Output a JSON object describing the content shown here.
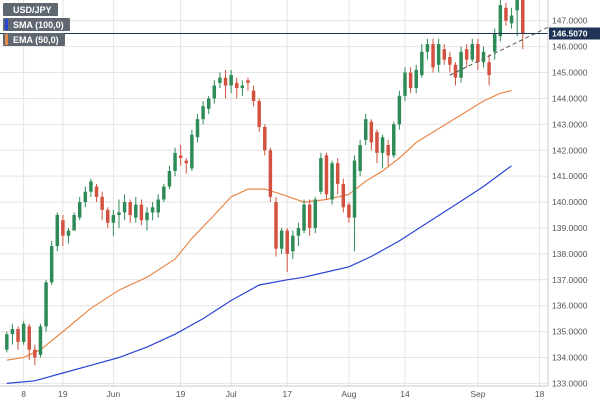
{
  "legend": {
    "symbol": "USD/JPY",
    "sma_label": "SMA (100,0)",
    "ema_label": "EMA (50,0)"
  },
  "colors": {
    "bull": "#2e8b57",
    "bear": "#d2523f",
    "sma": "#2a44d4",
    "ema": "#e8894a",
    "price_line": "#1f3356",
    "trendline": "#555555",
    "grid": "#e4e4e4",
    "last_box": "#1f3356"
  },
  "chart_data": {
    "type": "candlestick",
    "symbol": "USD/JPY",
    "ylim": [
      132.9,
      147.8
    ],
    "y_ticks": [
      "133.0000",
      "134.0000",
      "135.0000",
      "136.0000",
      "137.0000",
      "138.0000",
      "139.0000",
      "140.0000",
      "141.0000",
      "142.0000",
      "143.0000",
      "144.0000",
      "145.0000",
      "146.0000",
      "147.0000"
    ],
    "x_ticks": [
      {
        "label": "8",
        "at": 3
      },
      {
        "label": "19",
        "at": 10
      },
      {
        "label": "Jun",
        "at": 19
      },
      {
        "label": "19",
        "at": 31
      },
      {
        "label": "Jul",
        "at": 40
      },
      {
        "label": "17",
        "at": 50
      },
      {
        "label": "Aug",
        "at": 61
      },
      {
        "label": "14",
        "at": 71
      },
      {
        "label": "Sep",
        "at": 84
      },
      {
        "label": "18",
        "at": 95
      }
    ],
    "n_slots": 97,
    "last_price": "146.5070",
    "candles": [
      [
        134.3,
        134.9,
        134.2,
        135.0
      ],
      [
        134.9,
        135.1,
        134.5,
        135.3
      ],
      [
        135.1,
        134.6,
        134.3,
        135.2
      ],
      [
        134.6,
        135.3,
        134.5,
        135.4
      ],
      [
        135.2,
        134.3,
        133.9,
        135.3
      ],
      [
        134.3,
        134.0,
        133.7,
        134.5
      ],
      [
        134.1,
        135.2,
        134.0,
        135.3
      ],
      [
        135.2,
        136.9,
        135.0,
        137.0
      ],
      [
        136.9,
        138.3,
        136.8,
        138.5
      ],
      [
        138.3,
        139.5,
        138.1,
        139.6
      ],
      [
        139.3,
        138.7,
        138.3,
        139.5
      ],
      [
        138.7,
        138.9,
        138.4,
        139.0
      ],
      [
        138.9,
        139.5,
        138.9,
        139.6
      ],
      [
        139.4,
        140.0,
        139.3,
        140.2
      ],
      [
        140.0,
        140.4,
        139.8,
        140.6
      ],
      [
        140.4,
        140.8,
        140.2,
        140.9
      ],
      [
        140.6,
        140.2,
        140.0,
        140.7
      ],
      [
        140.2,
        139.7,
        139.3,
        140.4
      ],
      [
        139.7,
        139.2,
        139.0,
        139.8
      ],
      [
        139.2,
        139.5,
        138.7,
        139.7
      ],
      [
        139.5,
        139.6,
        139.0,
        140.1
      ],
      [
        139.6,
        140.0,
        139.3,
        140.3
      ],
      [
        140.0,
        139.5,
        139.2,
        140.1
      ],
      [
        139.4,
        139.9,
        139.2,
        140.2
      ],
      [
        139.9,
        139.3,
        139.1,
        140.1
      ],
      [
        139.3,
        139.6,
        138.9,
        139.8
      ],
      [
        139.6,
        139.8,
        139.3,
        140.0
      ],
      [
        139.6,
        140.1,
        139.4,
        140.3
      ],
      [
        140.1,
        140.6,
        140.0,
        140.7
      ],
      [
        140.6,
        141.2,
        140.5,
        141.4
      ],
      [
        141.2,
        141.9,
        141.0,
        142.1
      ],
      [
        141.8,
        141.7,
        141.4,
        142.2
      ],
      [
        141.6,
        141.5,
        141.1,
        141.7
      ],
      [
        141.3,
        142.6,
        141.2,
        142.8
      ],
      [
        142.5,
        143.2,
        142.3,
        143.4
      ],
      [
        143.2,
        143.7,
        143.0,
        143.9
      ],
      [
        143.6,
        144.0,
        143.4,
        144.1
      ],
      [
        144.0,
        144.5,
        143.8,
        144.7
      ],
      [
        144.6,
        144.8,
        144.4,
        145.0
      ],
      [
        144.8,
        144.5,
        144.0,
        145.1
      ],
      [
        144.5,
        144.9,
        144.2,
        145.1
      ],
      [
        144.6,
        144.4,
        144.0,
        144.8
      ],
      [
        144.4,
        144.5,
        144.1,
        144.7
      ],
      [
        144.7,
        144.6,
        144.3,
        144.8
      ],
      [
        144.3,
        143.9,
        143.7,
        144.5
      ],
      [
        143.9,
        142.9,
        142.7,
        144.0
      ],
      [
        142.9,
        142.0,
        141.8,
        143.0
      ],
      [
        142.0,
        140.2,
        140.0,
        142.1
      ],
      [
        140.0,
        138.2,
        137.9,
        140.2
      ],
      [
        138.2,
        138.9,
        138.0,
        139.0
      ],
      [
        138.9,
        138.0,
        137.3,
        139.0
      ],
      [
        138.1,
        138.7,
        137.8,
        138.9
      ],
      [
        138.7,
        139.0,
        138.3,
        139.2
      ],
      [
        138.9,
        139.9,
        138.8,
        140.1
      ],
      [
        139.9,
        139.0,
        138.7,
        140.1
      ],
      [
        139.0,
        140.1,
        138.8,
        140.2
      ],
      [
        140.4,
        141.7,
        140.3,
        141.9
      ],
      [
        141.8,
        140.3,
        140.1,
        141.9
      ],
      [
        140.1,
        141.5,
        139.9,
        141.6
      ],
      [
        141.5,
        140.7,
        140.3,
        141.7
      ],
      [
        140.7,
        139.8,
        139.6,
        140.9
      ],
      [
        139.9,
        139.4,
        139.2,
        140.0
      ],
      [
        139.4,
        141.6,
        138.1,
        141.8
      ],
      [
        141.2,
        142.2,
        141.0,
        142.4
      ],
      [
        142.4,
        143.2,
        142.2,
        143.4
      ],
      [
        143.1,
        142.3,
        142.0,
        143.2
      ],
      [
        142.7,
        141.9,
        141.5,
        142.8
      ],
      [
        141.9,
        142.5,
        141.3,
        142.6
      ],
      [
        142.2,
        141.8,
        141.4,
        142.4
      ],
      [
        141.8,
        143.0,
        141.7,
        143.1
      ],
      [
        143.0,
        144.1,
        142.8,
        144.3
      ],
      [
        144.1,
        145.0,
        143.9,
        145.2
      ],
      [
        145.0,
        144.4,
        144.2,
        145.2
      ],
      [
        144.4,
        145.1,
        144.2,
        145.3
      ],
      [
        144.9,
        145.8,
        144.8,
        146.1
      ],
      [
        145.8,
        146.1,
        145.5,
        146.3
      ],
      [
        146.1,
        145.2,
        145.0,
        146.3
      ],
      [
        145.3,
        146.1,
        145.0,
        146.3
      ],
      [
        145.9,
        145.5,
        145.3,
        146.1
      ],
      [
        145.6,
        145.3,
        145.0,
        145.8
      ],
      [
        145.3,
        144.8,
        144.5,
        145.4
      ],
      [
        144.8,
        145.8,
        144.6,
        146.0
      ],
      [
        145.9,
        145.5,
        145.2,
        146.1
      ],
      [
        145.5,
        146.1,
        145.4,
        146.3
      ],
      [
        146.1,
        145.4,
        145.1,
        146.3
      ],
      [
        145.4,
        145.8,
        145.2,
        146.0
      ],
      [
        145.4,
        144.9,
        144.5,
        145.7
      ],
      [
        145.8,
        146.5,
        145.5,
        146.7
      ],
      [
        146.4,
        147.6,
        146.2,
        147.8
      ],
      [
        147.5,
        147.0,
        146.8,
        147.7
      ],
      [
        146.9,
        147.2,
        146.7,
        147.5
      ],
      [
        147.4,
        147.8,
        146.4,
        147.9
      ],
      [
        147.8,
        146.5,
        145.9,
        147.9
      ]
    ],
    "ema50": [
      [
        0,
        133.9
      ],
      [
        3,
        134.0
      ],
      [
        6,
        134.3
      ],
      [
        10,
        135.0
      ],
      [
        15,
        135.9
      ],
      [
        20,
        136.6
      ],
      [
        25,
        137.1
      ],
      [
        30,
        137.8
      ],
      [
        33,
        138.6
      ],
      [
        37,
        139.5
      ],
      [
        40,
        140.2
      ],
      [
        43,
        140.5
      ],
      [
        46,
        140.5
      ],
      [
        49,
        140.3
      ],
      [
        53,
        140.0
      ],
      [
        57,
        140.1
      ],
      [
        61,
        140.3
      ],
      [
        64,
        140.8
      ],
      [
        67,
        141.2
      ],
      [
        70,
        141.7
      ],
      [
        73,
        142.3
      ],
      [
        76,
        142.7
      ],
      [
        79,
        143.1
      ],
      [
        82,
        143.5
      ],
      [
        85,
        143.9
      ],
      [
        88,
        144.2
      ],
      [
        90,
        144.3
      ]
    ],
    "sma100": [
      [
        0,
        133.0
      ],
      [
        5,
        133.1
      ],
      [
        10,
        133.4
      ],
      [
        15,
        133.7
      ],
      [
        20,
        134.0
      ],
      [
        25,
        134.4
      ],
      [
        30,
        134.9
      ],
      [
        35,
        135.5
      ],
      [
        40,
        136.2
      ],
      [
        45,
        136.8
      ],
      [
        50,
        137.0
      ],
      [
        53,
        137.1
      ],
      [
        57,
        137.3
      ],
      [
        61,
        137.5
      ],
      [
        65,
        137.9
      ],
      [
        70,
        138.5
      ],
      [
        75,
        139.2
      ],
      [
        80,
        139.9
      ],
      [
        85,
        140.6
      ],
      [
        90,
        141.4
      ]
    ],
    "trendline": [
      [
        79,
        144.9
      ],
      [
        97,
        146.8
      ]
    ]
  }
}
